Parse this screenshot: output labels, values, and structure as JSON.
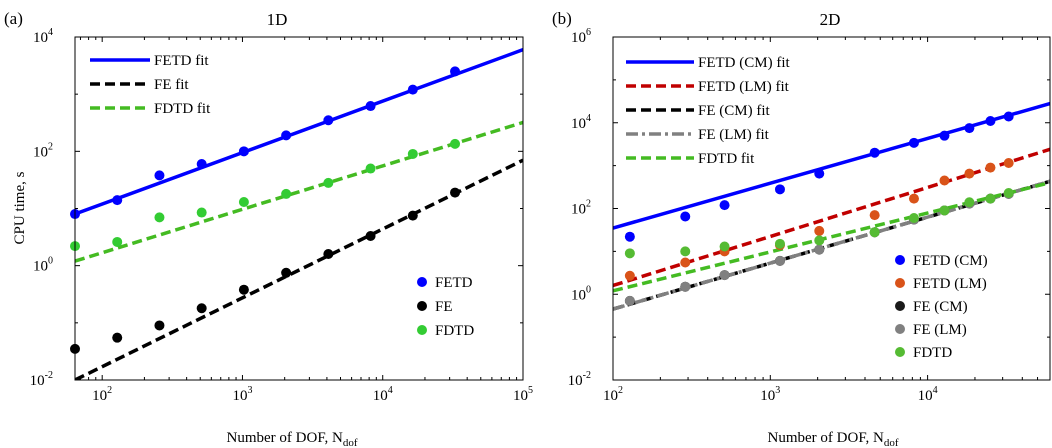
{
  "chart_data": [
    {
      "type": "scatter",
      "panel_label": "(a)",
      "title": "1D",
      "xlabel": "Number of DOF, N",
      "xlabel_sub": "dof",
      "ylabel": "CPU time, s",
      "xscale": "log",
      "yscale": "log",
      "xlim": [
        64,
        100000
      ],
      "ylim": [
        0.01,
        10000
      ],
      "xticks": [
        {
          "v": 100,
          "base": "10",
          "exp": "2"
        },
        {
          "v": 1000,
          "base": "10",
          "exp": "3"
        },
        {
          "v": 10000,
          "base": "10",
          "exp": "4"
        },
        {
          "v": 100000,
          "base": "10",
          "exp": "5"
        }
      ],
      "yticks": [
        {
          "v": 0.01,
          "base": "10",
          "exp": "-2"
        },
        {
          "v": 1,
          "base": "10",
          "exp": "0"
        },
        {
          "v": 100,
          "base": "10",
          "exp": "2"
        },
        {
          "v": 10000,
          "base": "10",
          "exp": "4"
        }
      ],
      "grid": false,
      "legend_fits_position": "top-left",
      "legend_points_position": "bottom-right",
      "series": [
        {
          "name": "FETD",
          "color": "#0000ff",
          "x": [
            64,
            128,
            256,
            512,
            1024,
            2048,
            4096,
            8192,
            16384,
            32768
          ],
          "y": [
            8,
            14,
            38,
            60,
            100,
            190,
            350,
            620,
            1200,
            2500
          ]
        },
        {
          "name": "FE",
          "color": "#000000",
          "x": [
            64,
            128,
            256,
            512,
            1024,
            2048,
            4096,
            8192,
            16384,
            32768
          ],
          "y": [
            0.035,
            0.055,
            0.09,
            0.18,
            0.38,
            0.75,
            1.6,
            3.3,
            7.5,
            19
          ]
        },
        {
          "name": "FDTD",
          "color": "#33cc33",
          "x": [
            64,
            128,
            256,
            512,
            1024,
            2048,
            4096,
            8192,
            16384,
            32768
          ],
          "y": [
            2.2,
            2.6,
            7,
            8.5,
            13,
            18,
            28,
            50,
            90,
            135
          ]
        }
      ],
      "fits": [
        {
          "name": "FETD fit",
          "color": "#0000ff",
          "style": "solid",
          "x": [
            64,
            100000
          ],
          "y": [
            8,
            6000
          ]
        },
        {
          "name": "FE fit",
          "color": "#000000",
          "style": "dashed",
          "x": [
            64,
            100000
          ],
          "y": [
            0.01,
            70
          ]
        },
        {
          "name": "FDTD fit",
          "color": "#44bb22",
          "style": "dashed",
          "x": [
            64,
            100000
          ],
          "y": [
            1.2,
            320
          ]
        }
      ]
    },
    {
      "type": "scatter",
      "panel_label": "(b)",
      "title": "2D",
      "xlabel": "Number of DOF, N",
      "xlabel_sub": "dof",
      "ylabel": "",
      "xscale": "log",
      "yscale": "log",
      "xlim": [
        100,
        60000
      ],
      "ylim": [
        0.01,
        1000000
      ],
      "xticks": [
        {
          "v": 100,
          "base": "10",
          "exp": "2"
        },
        {
          "v": 1000,
          "base": "10",
          "exp": "3"
        },
        {
          "v": 10000,
          "base": "10",
          "exp": "4"
        }
      ],
      "yticks": [
        {
          "v": 0.01,
          "base": "10",
          "exp": "-2"
        },
        {
          "v": 1,
          "base": "10",
          "exp": "0"
        },
        {
          "v": 100,
          "base": "10",
          "exp": "2"
        },
        {
          "v": 10000,
          "base": "10",
          "exp": "4"
        },
        {
          "v": 1000000,
          "base": "10",
          "exp": "6"
        }
      ],
      "grid": false,
      "legend_fits_position": "top-left",
      "legend_points_position": "bottom-right",
      "series": [
        {
          "name": "FETD (CM)",
          "color": "#0000ff",
          "x": [
            128,
            288,
            512,
            1152,
            2048,
            4608,
            8192,
            12800,
            18432,
            25088,
            32768
          ],
          "y": [
            22,
            65,
            120,
            280,
            650,
            2000,
            3400,
            5000,
            7500,
            11000,
            14000
          ]
        },
        {
          "name": "FETD (LM)",
          "color": "#d95319",
          "x": [
            128,
            288,
            512,
            1152,
            2048,
            4608,
            8192,
            12800,
            18432,
            25088,
            32768
          ],
          "y": [
            2.7,
            5.5,
            10,
            14,
            30,
            70,
            170,
            450,
            650,
            900,
            1150
          ]
        },
        {
          "name": "FE (CM)",
          "color": "#1a1a1a",
          "x": [
            128,
            288,
            512,
            1152,
            2048,
            4608,
            8192,
            12800,
            18432,
            25088,
            32768
          ],
          "y": [
            0.7,
            1.5,
            2.8,
            6,
            11,
            28,
            55,
            90,
            130,
            170,
            220
          ]
        },
        {
          "name": "FE (LM)",
          "color": "#808080",
          "x": [
            128,
            288,
            512,
            1152,
            2048,
            4608,
            8192,
            12800,
            18432,
            25088,
            32768
          ],
          "y": [
            0.7,
            1.5,
            2.8,
            6,
            11,
            28,
            55,
            90,
            130,
            170,
            220
          ]
        },
        {
          "name": "FDTD",
          "color": "#55bb33",
          "x": [
            128,
            288,
            512,
            1152,
            2048,
            4608,
            8192,
            12800,
            18432,
            25088,
            32768
          ],
          "y": [
            9,
            10,
            13,
            15,
            18,
            28,
            60,
            90,
            140,
            170,
            230
          ]
        }
      ],
      "fits": [
        {
          "name": "FETD (CM) fit",
          "color": "#0000ff",
          "style": "solid",
          "x": [
            100,
            60000
          ],
          "y": [
            35,
            28000
          ]
        },
        {
          "name": "FETD (LM) fit",
          "color": "#c00000",
          "style": "dashed",
          "x": [
            100,
            60000
          ],
          "y": [
            1.6,
            2400
          ]
        },
        {
          "name": "FE (CM) fit",
          "color": "#000000",
          "style": "dashed",
          "x": [
            100,
            60000
          ],
          "y": [
            0.45,
            430
          ]
        },
        {
          "name": "FE (LM) fit",
          "color": "#808080",
          "style": "dashdot",
          "x": [
            100,
            60000
          ],
          "y": [
            0.45,
            430
          ]
        },
        {
          "name": "FDTD fit",
          "color": "#44bb22",
          "style": "dashed",
          "x": [
            100,
            60000
          ],
          "y": [
            1.2,
            400
          ]
        }
      ]
    }
  ]
}
